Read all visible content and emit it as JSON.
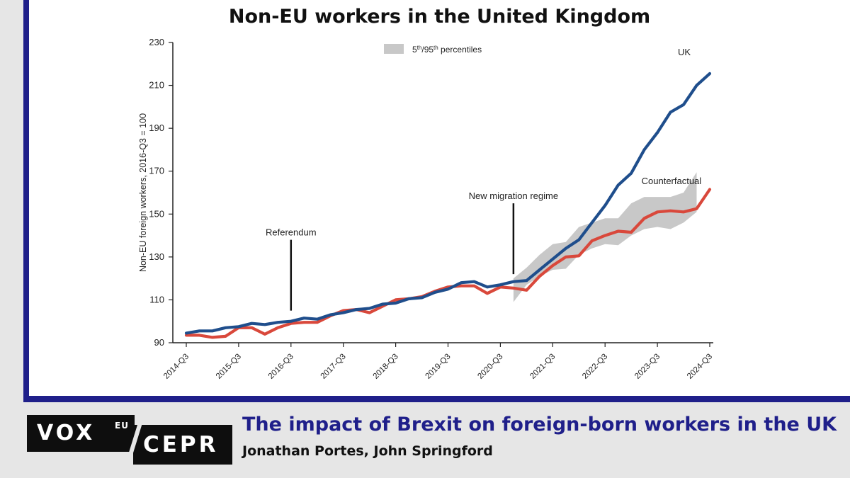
{
  "chart_data": {
    "type": "line",
    "title": "Non-EU workers in the United Kingdom",
    "ylabel": "Non-EU foreign workers, 2016-Q3 = 100",
    "xlabel": "",
    "ylim": [
      90,
      230
    ],
    "yticks": [
      90,
      110,
      130,
      150,
      170,
      190,
      210,
      230
    ],
    "x": [
      "2014-Q3",
      "2014-Q4",
      "2015-Q1",
      "2015-Q2",
      "2015-Q3",
      "2015-Q4",
      "2016-Q1",
      "2016-Q2",
      "2016-Q3",
      "2016-Q4",
      "2017-Q1",
      "2017-Q2",
      "2017-Q3",
      "2017-Q4",
      "2018-Q1",
      "2018-Q2",
      "2018-Q3",
      "2018-Q4",
      "2019-Q1",
      "2019-Q2",
      "2019-Q3",
      "2019-Q4",
      "2020-Q1",
      "2020-Q2",
      "2020-Q3",
      "2020-Q4",
      "2021-Q1",
      "2021-Q2",
      "2021-Q3",
      "2021-Q4",
      "2022-Q1",
      "2022-Q2",
      "2022-Q3",
      "2022-Q4",
      "2023-Q1",
      "2023-Q2",
      "2023-Q3",
      "2023-Q4",
      "2024-Q1",
      "2024-Q2",
      "2024-Q3"
    ],
    "xticks": [
      "2014-Q3",
      "2015-Q3",
      "2016-Q3",
      "2017-Q3",
      "2018-Q3",
      "2019-Q3",
      "2020-Q3",
      "2021-Q3",
      "2022-Q3",
      "2023-Q3",
      "2024-Q3"
    ],
    "series": [
      {
        "name": "UK",
        "color": "#1f4e8c",
        "values": [
          94.5,
          95.5,
          95.5,
          97,
          97.5,
          99,
          98.5,
          99.5,
          100,
          101.5,
          101,
          103,
          104,
          105.5,
          106,
          108,
          108.5,
          110.5,
          111,
          113.5,
          115,
          118,
          118.5,
          116,
          117,
          118.5,
          119,
          124,
          129,
          134,
          138,
          146,
          154,
          163.5,
          169,
          180,
          188,
          197.5,
          201,
          210,
          215.5
        ]
      },
      {
        "name": "Counterfactual",
        "color": "#d9483b",
        "values": [
          93.5,
          93.5,
          92.5,
          93,
          97,
          97,
          94,
          97,
          99,
          99.5,
          99.5,
          102.5,
          105,
          105.5,
          104,
          107,
          110,
          110.5,
          111.5,
          114,
          116,
          116.5,
          116.5,
          113,
          116,
          115.5,
          114.5,
          121,
          126,
          130,
          130.5,
          137.5,
          140,
          142,
          141.5,
          148,
          151,
          151.5,
          151,
          152.5,
          161.5
        ]
      }
    ],
    "band": {
      "name": "5th/95th percentiles",
      "color": "#c8c8c8",
      "start": "2020-Q4",
      "lower": [
        109,
        117,
        121,
        124,
        124.5,
        131,
        134,
        136,
        135.5,
        140,
        143,
        144,
        143,
        146,
        151
      ],
      "upper": [
        120,
        125,
        131,
        136,
        137,
        144,
        146,
        148,
        148,
        155,
        158,
        158,
        158,
        160,
        169.5
      ]
    },
    "annotations": [
      {
        "text": "Referendum",
        "x": "2016-Q3",
        "from_y": 105,
        "to_y": 138
      },
      {
        "text": "New migration regime",
        "x": "2020-Q4",
        "from_y": 122,
        "to_y": 155
      },
      {
        "text": "UK",
        "x": "2024-Q1",
        "y": 224
      },
      {
        "text": "Counterfactual",
        "x": "2023-Q2",
        "y": 164
      }
    ],
    "legend": {
      "label_base": "5",
      "label_sup1": "th",
      "label_mid": "/95",
      "label_sup2": "th",
      "label_tail": " percentiles",
      "placement": "top-center"
    }
  },
  "footer": {
    "logo_vox": "VOX",
    "logo_eu": "EU",
    "logo_cepr": "CEPR",
    "article_title": "The impact of Brexit on foreign-born workers in the UK",
    "authors": "Jonathan Portes, John Springford"
  },
  "colors": {
    "frame": "#1f1f8a",
    "background": "#e6e6e6",
    "title_accent": "#1f1f8a"
  }
}
